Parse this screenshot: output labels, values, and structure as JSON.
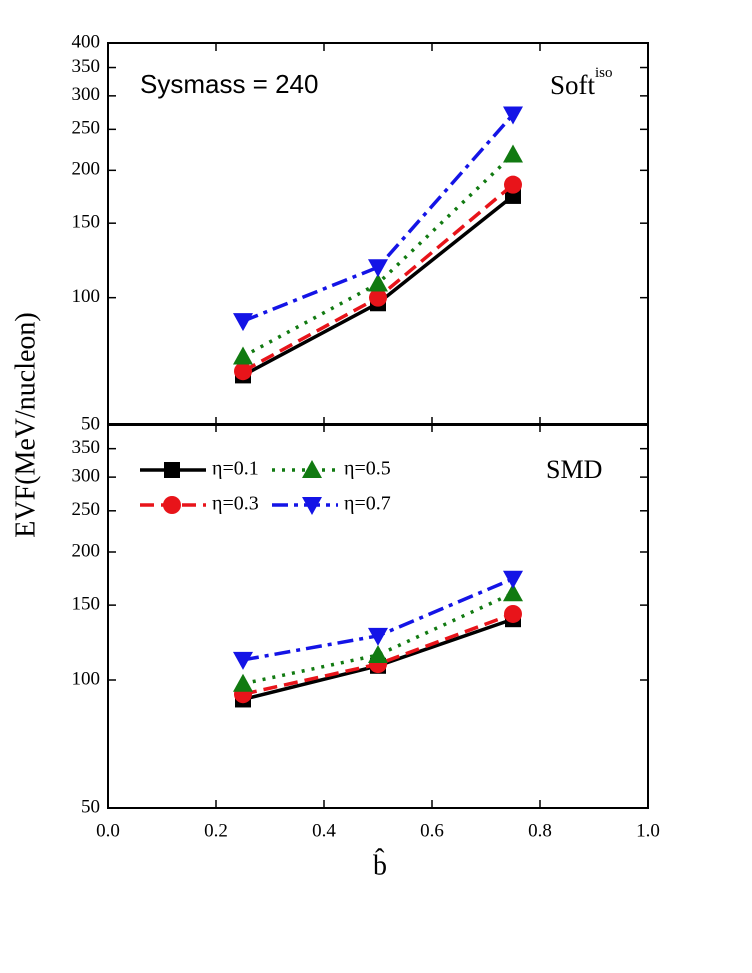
{
  "chart_data": [
    {
      "type": "line",
      "log_y": true,
      "ylabel": "EVF(MeV/nucleon)",
      "annotations": [
        {
          "text": "Sysmass = 240"
        },
        {
          "text": "Soft",
          "sup": "iso"
        }
      ],
      "x": [
        0.25,
        0.5,
        0.75
      ],
      "ylim": [
        50,
        400
      ],
      "yticks": [
        50,
        100,
        150,
        200,
        250,
        300,
        350,
        400
      ],
      "series": [
        {
          "color": "#000000",
          "marker": "square",
          "linestyle": "solid",
          "values": [
            65.5,
            97,
            174
          ]
        },
        {
          "color": "#e8141a",
          "marker": "circle",
          "linestyle": "dashed",
          "values": [
            67,
            100,
            185
          ]
        },
        {
          "color": "#117a11",
          "marker": "triangle-up",
          "linestyle": "dotted",
          "values": [
            72.6,
            108,
            218
          ]
        },
        {
          "color": "#1414e6",
          "marker": "triangle-down",
          "linestyle": "dashdot",
          "values": [
            88,
            118,
            271
          ]
        }
      ]
    },
    {
      "type": "line",
      "log_y": true,
      "xlabel": "b̂",
      "annotations": [
        {
          "text": "SMD"
        }
      ],
      "x": [
        0.25,
        0.5,
        0.75
      ],
      "xlim": [
        0,
        1
      ],
      "xticks": [
        {
          "value": 0,
          "label": "0.0"
        },
        {
          "value": 0.2,
          "label": "0.2"
        },
        {
          "value": 0.4,
          "label": "0.4"
        },
        {
          "value": 0.6,
          "label": "0.6"
        },
        {
          "value": 0.8,
          "label": "0.8"
        },
        {
          "value": 1,
          "label": "1.0"
        }
      ],
      "ylim": [
        50,
        400
      ],
      "yticks": [
        50,
        100,
        150,
        200,
        250,
        300,
        350
      ],
      "series": [
        {
          "name": "η=0.1",
          "color": "#000000",
          "marker": "square",
          "linestyle": "solid",
          "values": [
            90,
            108,
            139
          ]
        },
        {
          "name": "η=0.3",
          "color": "#e8141a",
          "marker": "circle",
          "linestyle": "dashed",
          "values": [
            92.6,
            109,
            143
          ]
        },
        {
          "name": "η=0.5",
          "color": "#117a11",
          "marker": "triangle-up",
          "linestyle": "dotted",
          "values": [
            98,
            114.5,
            160
          ]
        },
        {
          "name": "η=0.7",
          "color": "#1414e6",
          "marker": "triangle-down",
          "linestyle": "dashdot",
          "values": [
            111.5,
            127,
            173
          ]
        }
      ]
    }
  ]
}
